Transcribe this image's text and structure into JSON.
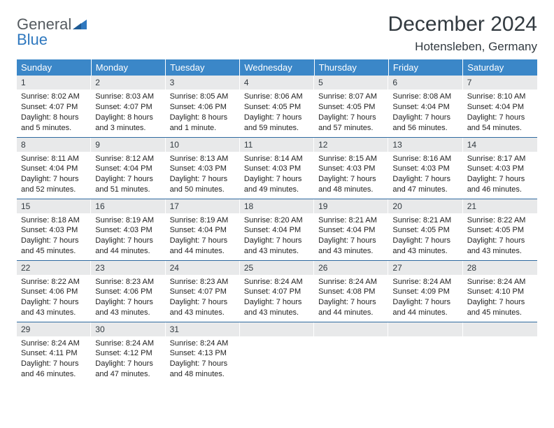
{
  "brand": {
    "general": "General",
    "blue": "Blue"
  },
  "title": "December 2024",
  "location": "Hotensleben, Germany",
  "colors": {
    "header_bg": "#3b87c8",
    "header_fg": "#ffffff",
    "daynum_bg": "#e8e9ea",
    "rule": "#2f6aa0",
    "title_color": "#323a40",
    "logo_gray": "#555b60",
    "logo_blue": "#2f78bf"
  },
  "weekdays": [
    "Sunday",
    "Monday",
    "Tuesday",
    "Wednesday",
    "Thursday",
    "Friday",
    "Saturday"
  ],
  "weeks": [
    [
      {
        "n": "1",
        "sr": "Sunrise: 8:02 AM",
        "ss": "Sunset: 4:07 PM",
        "dl": "Daylight: 8 hours and 5 minutes."
      },
      {
        "n": "2",
        "sr": "Sunrise: 8:03 AM",
        "ss": "Sunset: 4:07 PM",
        "dl": "Daylight: 8 hours and 3 minutes."
      },
      {
        "n": "3",
        "sr": "Sunrise: 8:05 AM",
        "ss": "Sunset: 4:06 PM",
        "dl": "Daylight: 8 hours and 1 minute."
      },
      {
        "n": "4",
        "sr": "Sunrise: 8:06 AM",
        "ss": "Sunset: 4:05 PM",
        "dl": "Daylight: 7 hours and 59 minutes."
      },
      {
        "n": "5",
        "sr": "Sunrise: 8:07 AM",
        "ss": "Sunset: 4:05 PM",
        "dl": "Daylight: 7 hours and 57 minutes."
      },
      {
        "n": "6",
        "sr": "Sunrise: 8:08 AM",
        "ss": "Sunset: 4:04 PM",
        "dl": "Daylight: 7 hours and 56 minutes."
      },
      {
        "n": "7",
        "sr": "Sunrise: 8:10 AM",
        "ss": "Sunset: 4:04 PM",
        "dl": "Daylight: 7 hours and 54 minutes."
      }
    ],
    [
      {
        "n": "8",
        "sr": "Sunrise: 8:11 AM",
        "ss": "Sunset: 4:04 PM",
        "dl": "Daylight: 7 hours and 52 minutes."
      },
      {
        "n": "9",
        "sr": "Sunrise: 8:12 AM",
        "ss": "Sunset: 4:04 PM",
        "dl": "Daylight: 7 hours and 51 minutes."
      },
      {
        "n": "10",
        "sr": "Sunrise: 8:13 AM",
        "ss": "Sunset: 4:03 PM",
        "dl": "Daylight: 7 hours and 50 minutes."
      },
      {
        "n": "11",
        "sr": "Sunrise: 8:14 AM",
        "ss": "Sunset: 4:03 PM",
        "dl": "Daylight: 7 hours and 49 minutes."
      },
      {
        "n": "12",
        "sr": "Sunrise: 8:15 AM",
        "ss": "Sunset: 4:03 PM",
        "dl": "Daylight: 7 hours and 48 minutes."
      },
      {
        "n": "13",
        "sr": "Sunrise: 8:16 AM",
        "ss": "Sunset: 4:03 PM",
        "dl": "Daylight: 7 hours and 47 minutes."
      },
      {
        "n": "14",
        "sr": "Sunrise: 8:17 AM",
        "ss": "Sunset: 4:03 PM",
        "dl": "Daylight: 7 hours and 46 minutes."
      }
    ],
    [
      {
        "n": "15",
        "sr": "Sunrise: 8:18 AM",
        "ss": "Sunset: 4:03 PM",
        "dl": "Daylight: 7 hours and 45 minutes."
      },
      {
        "n": "16",
        "sr": "Sunrise: 8:19 AM",
        "ss": "Sunset: 4:03 PM",
        "dl": "Daylight: 7 hours and 44 minutes."
      },
      {
        "n": "17",
        "sr": "Sunrise: 8:19 AM",
        "ss": "Sunset: 4:04 PM",
        "dl": "Daylight: 7 hours and 44 minutes."
      },
      {
        "n": "18",
        "sr": "Sunrise: 8:20 AM",
        "ss": "Sunset: 4:04 PM",
        "dl": "Daylight: 7 hours and 43 minutes."
      },
      {
        "n": "19",
        "sr": "Sunrise: 8:21 AM",
        "ss": "Sunset: 4:04 PM",
        "dl": "Daylight: 7 hours and 43 minutes."
      },
      {
        "n": "20",
        "sr": "Sunrise: 8:21 AM",
        "ss": "Sunset: 4:05 PM",
        "dl": "Daylight: 7 hours and 43 minutes."
      },
      {
        "n": "21",
        "sr": "Sunrise: 8:22 AM",
        "ss": "Sunset: 4:05 PM",
        "dl": "Daylight: 7 hours and 43 minutes."
      }
    ],
    [
      {
        "n": "22",
        "sr": "Sunrise: 8:22 AM",
        "ss": "Sunset: 4:06 PM",
        "dl": "Daylight: 7 hours and 43 minutes."
      },
      {
        "n": "23",
        "sr": "Sunrise: 8:23 AM",
        "ss": "Sunset: 4:06 PM",
        "dl": "Daylight: 7 hours and 43 minutes."
      },
      {
        "n": "24",
        "sr": "Sunrise: 8:23 AM",
        "ss": "Sunset: 4:07 PM",
        "dl": "Daylight: 7 hours and 43 minutes."
      },
      {
        "n": "25",
        "sr": "Sunrise: 8:24 AM",
        "ss": "Sunset: 4:07 PM",
        "dl": "Daylight: 7 hours and 43 minutes."
      },
      {
        "n": "26",
        "sr": "Sunrise: 8:24 AM",
        "ss": "Sunset: 4:08 PM",
        "dl": "Daylight: 7 hours and 44 minutes."
      },
      {
        "n": "27",
        "sr": "Sunrise: 8:24 AM",
        "ss": "Sunset: 4:09 PM",
        "dl": "Daylight: 7 hours and 44 minutes."
      },
      {
        "n": "28",
        "sr": "Sunrise: 8:24 AM",
        "ss": "Sunset: 4:10 PM",
        "dl": "Daylight: 7 hours and 45 minutes."
      }
    ],
    [
      {
        "n": "29",
        "sr": "Sunrise: 8:24 AM",
        "ss": "Sunset: 4:11 PM",
        "dl": "Daylight: 7 hours and 46 minutes."
      },
      {
        "n": "30",
        "sr": "Sunrise: 8:24 AM",
        "ss": "Sunset: 4:12 PM",
        "dl": "Daylight: 7 hours and 47 minutes."
      },
      {
        "n": "31",
        "sr": "Sunrise: 8:24 AM",
        "ss": "Sunset: 4:13 PM",
        "dl": "Daylight: 7 hours and 48 minutes."
      },
      {
        "empty": true
      },
      {
        "empty": true
      },
      {
        "empty": true
      },
      {
        "empty": true
      }
    ]
  ]
}
